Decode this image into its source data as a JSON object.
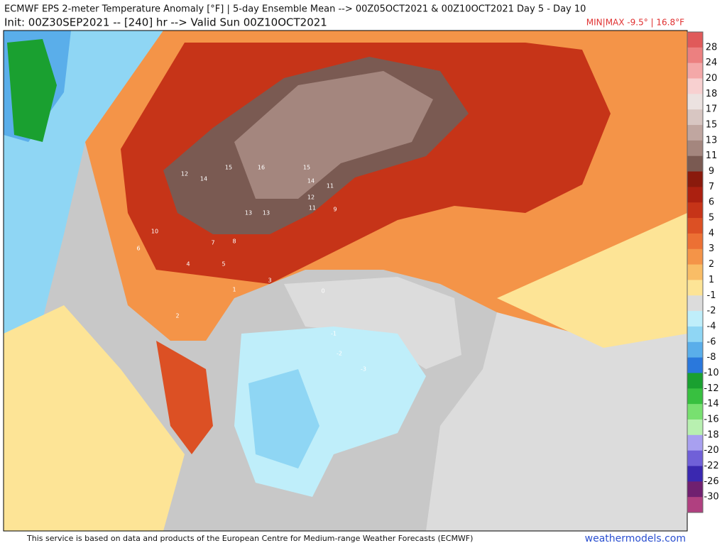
{
  "header": {
    "title": "ECMWF EPS 2-meter Temperature Anomaly [°F] | 5-day Ensemble Mean --> 00Z05OCT2021 & 00Z10OCT2021   Day 5 - Day 10",
    "subtitle": "Init: 00Z30SEP2021 -- [240] hr --> Valid Sun 00Z10OCT2021",
    "minmax": "MIN|MAX -9.5° | 16.8°F"
  },
  "colorbar": {
    "labels": [
      "28",
      "24",
      "20",
      "18",
      "17",
      "15",
      "13",
      "11",
      "9",
      "7",
      "6",
      "5",
      "4",
      "3",
      "2",
      "1",
      "-1",
      "-2",
      "-4",
      "-6",
      "-8",
      "-10",
      "-12",
      "-14",
      "-16",
      "-18",
      "-20",
      "-22",
      "-26",
      "-30"
    ],
    "colors": [
      "#e05a5a",
      "#ec8080",
      "#f4a8a8",
      "#f8d0d0",
      "#ece2e0",
      "#d8c6c2",
      "#c0a6a0",
      "#a4867e",
      "#7a5a52",
      "#8a1a0c",
      "#ab2010",
      "#c63418",
      "#dc5024",
      "#ec7034",
      "#f49448",
      "#f9bd66",
      "#fde496",
      "#dcdcdc",
      "#bfeefa",
      "#8fd6f4",
      "#5aaeea",
      "#2a78dc",
      "#1aa030",
      "#38c040",
      "#78e070",
      "#b8f0b0",
      "#a8a0f0",
      "#7060d8",
      "#3a28b0",
      "#702070",
      "#b04080"
    ]
  },
  "map_labels": [
    "12",
    "14",
    "15",
    "16",
    "15",
    "14",
    "13",
    "12",
    "11",
    "13",
    "11",
    "10",
    "9",
    "8",
    "7",
    "6",
    "5",
    "4",
    "3",
    "2",
    "1",
    "0",
    "-1",
    "-2",
    "-3"
  ],
  "footer": {
    "credit": "This service is based on data and products of the European Centre for Medium-range Weather Forecasts (ECMWF)",
    "watermark": "weathermodels.com"
  }
}
